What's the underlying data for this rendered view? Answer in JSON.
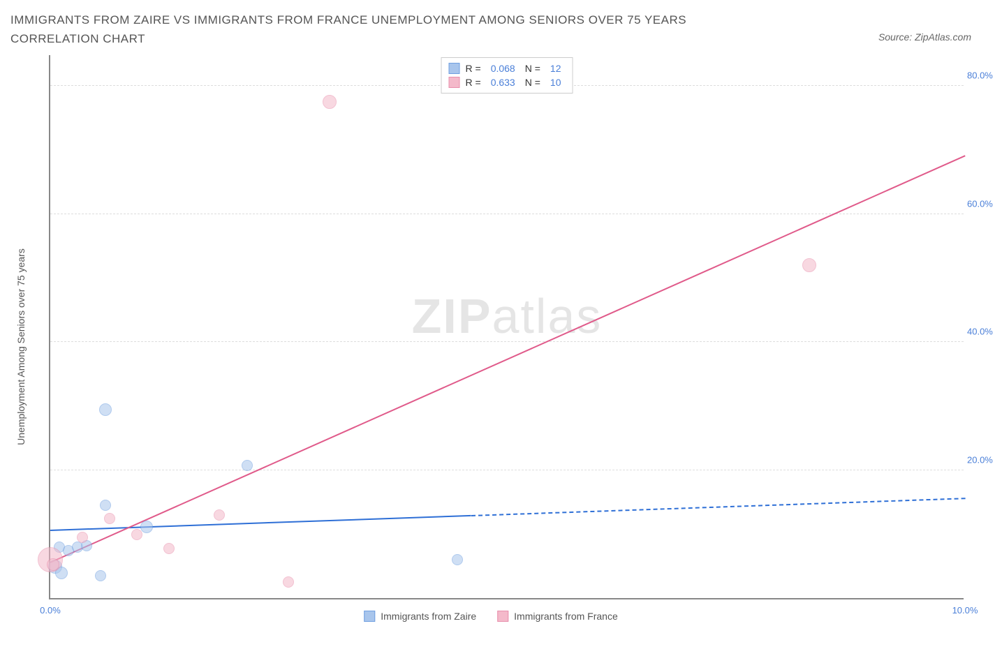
{
  "title": "IMMIGRANTS FROM ZAIRE VS IMMIGRANTS FROM FRANCE UNEMPLOYMENT AMONG SENIORS OVER 75 YEARS CORRELATION CHART",
  "source": "Source: ZipAtlas.com",
  "y_axis_label": "Unemployment Among Seniors over 75 years",
  "watermark_bold": "ZIP",
  "watermark_light": "atlas",
  "chart": {
    "type": "scatter",
    "xlim": [
      0,
      10
    ],
    "ylim": [
      0,
      85
    ],
    "x_ticks": [
      {
        "val": 0.0,
        "label": "0.0%"
      },
      {
        "val": 10.0,
        "label": "10.0%"
      }
    ],
    "y_ticks": [
      {
        "val": 20,
        "label": "20.0%"
      },
      {
        "val": 40,
        "label": "40.0%"
      },
      {
        "val": 60,
        "label": "60.0%"
      },
      {
        "val": 80,
        "label": "80.0%"
      }
    ],
    "grid_color": "#dddddd",
    "axis_color": "#888888",
    "tick_text_color": "#4a7fd8",
    "series": [
      {
        "name": "Immigrants from Zaire",
        "fill_color": "#a8c5ec",
        "stroke_color": "#6f9fe0",
        "fill_opacity": 0.55,
        "R": "0.068",
        "N": "12",
        "trend": {
          "x1": 0,
          "y1": 10.5,
          "x2": 10,
          "y2": 15.5,
          "solid_until_x": 4.6,
          "color": "#2e6fd6"
        },
        "points": [
          {
            "x": 0.05,
            "y": 5.0,
            "r": 10
          },
          {
            "x": 0.12,
            "y": 4.0,
            "r": 9
          },
          {
            "x": 0.1,
            "y": 8.0,
            "r": 8
          },
          {
            "x": 0.2,
            "y": 7.5,
            "r": 8
          },
          {
            "x": 0.3,
            "y": 8.0,
            "r": 8
          },
          {
            "x": 0.4,
            "y": 8.2,
            "r": 8
          },
          {
            "x": 0.55,
            "y": 3.5,
            "r": 8
          },
          {
            "x": 0.6,
            "y": 14.5,
            "r": 8
          },
          {
            "x": 0.6,
            "y": 29.5,
            "r": 9
          },
          {
            "x": 1.05,
            "y": 11.2,
            "r": 9
          },
          {
            "x": 2.15,
            "y": 20.8,
            "r": 8
          },
          {
            "x": 4.45,
            "y": 6.0,
            "r": 8
          }
        ]
      },
      {
        "name": "Immigrants from France",
        "fill_color": "#f4b9ca",
        "stroke_color": "#e88fac",
        "fill_opacity": 0.55,
        "R": "0.633",
        "N": "10",
        "trend": {
          "x1": 0,
          "y1": 5.5,
          "x2": 10,
          "y2": 69.0,
          "solid_until_x": 10,
          "color": "#e05a8a"
        },
        "points": [
          {
            "x": 0.0,
            "y": 6.0,
            "r": 18
          },
          {
            "x": 0.03,
            "y": 5.3,
            "r": 9
          },
          {
            "x": 0.35,
            "y": 9.5,
            "r": 8
          },
          {
            "x": 0.65,
            "y": 12.5,
            "r": 8
          },
          {
            "x": 0.95,
            "y": 10.0,
            "r": 8
          },
          {
            "x": 1.3,
            "y": 7.8,
            "r": 8
          },
          {
            "x": 1.85,
            "y": 13.0,
            "r": 8
          },
          {
            "x": 2.6,
            "y": 2.5,
            "r": 8
          },
          {
            "x": 3.05,
            "y": 77.5,
            "r": 10
          },
          {
            "x": 8.3,
            "y": 52.0,
            "r": 10
          }
        ]
      }
    ]
  },
  "legend_top": {
    "rows": [
      {
        "swatch_fill": "#a8c5ec",
        "swatch_border": "#6f9fe0",
        "R_label": "R =",
        "R": "0.068",
        "N_label": "N =",
        "N": "12"
      },
      {
        "swatch_fill": "#f4b9ca",
        "swatch_border": "#e88fac",
        "R_label": "R =",
        "R": "0.633",
        "N_label": "N =",
        "N": "10"
      }
    ]
  },
  "legend_bottom": [
    {
      "swatch_fill": "#a8c5ec",
      "swatch_border": "#6f9fe0",
      "label": "Immigrants from Zaire"
    },
    {
      "swatch_fill": "#f4b9ca",
      "swatch_border": "#e88fac",
      "label": "Immigrants from France"
    }
  ]
}
